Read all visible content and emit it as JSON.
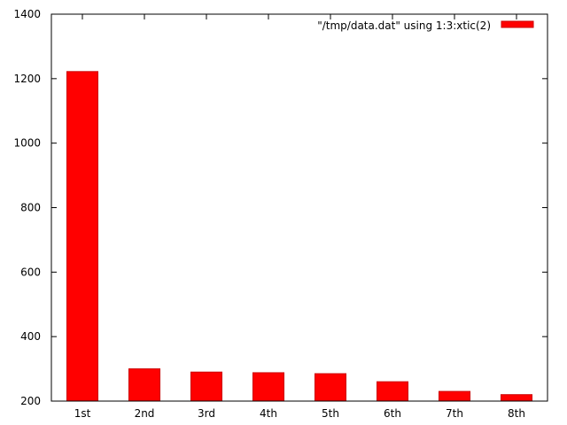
{
  "chart_data": {
    "type": "bar",
    "categories": [
      "1st",
      "2nd",
      "3rd",
      "4th",
      "5th",
      "6th",
      "7th",
      "8th"
    ],
    "series": [
      {
        "name": "\"/tmp/data.dat\" using 1:3:xtic(2)",
        "values": [
          1222,
          300,
          290,
          288,
          285,
          260,
          230,
          220
        ],
        "color": "#ff0000"
      }
    ],
    "title": "",
    "xlabel": "",
    "ylabel": "",
    "ylim": [
      200,
      1400
    ],
    "yticks": [
      200,
      400,
      600,
      800,
      1000,
      1200,
      1400
    ],
    "grid": false,
    "legend_position": "top-right"
  }
}
